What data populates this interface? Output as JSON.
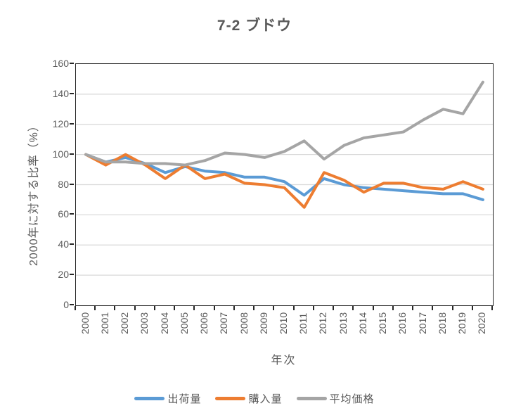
{
  "title": "7-2 ブドウ",
  "y_axis": {
    "title": "2000年に対する比率（%）",
    "ticks": [
      "160",
      "140",
      "120",
      "100",
      "80",
      "60",
      "40",
      "20",
      "0"
    ]
  },
  "x_axis": {
    "title": "年次",
    "labels": [
      "2000",
      "2001",
      "2002",
      "2003",
      "2004",
      "2005",
      "2006",
      "2007",
      "2008",
      "2009",
      "2010",
      "2011",
      "2012",
      "2013",
      "2014",
      "2015",
      "2016",
      "2017",
      "2018",
      "2019",
      "2020"
    ]
  },
  "legend": [
    {
      "label": "出荷量",
      "color": "#5B9BD5"
    },
    {
      "label": "購入量",
      "color": "#ED7D31"
    },
    {
      "label": "平均価格",
      "color": "#A5A5A5"
    }
  ],
  "colors": {
    "grid": "#D9D9D9",
    "axis": "#262626",
    "text": "#595959"
  },
  "chart_data": {
    "type": "line",
    "title": "7-2 ブドウ",
    "xlabel": "年次",
    "ylabel": "2000年に対する比率（%）",
    "ylim": [
      0,
      160
    ],
    "ytick_step": 20,
    "grid": "horizontal",
    "legend_position": "bottom",
    "categories": [
      "2000",
      "2001",
      "2002",
      "2003",
      "2004",
      "2005",
      "2006",
      "2007",
      "2008",
      "2009",
      "2010",
      "2011",
      "2012",
      "2013",
      "2014",
      "2015",
      "2016",
      "2017",
      "2018",
      "2019",
      "2020"
    ],
    "series": [
      {
        "name": "出荷量",
        "color": "#5B9BD5",
        "values": [
          100,
          95,
          98,
          94,
          88,
          92,
          89,
          88,
          85,
          85,
          82,
          73,
          84,
          80,
          78,
          77,
          76,
          75,
          74,
          74,
          70
        ]
      },
      {
        "name": "購入量",
        "color": "#ED7D31",
        "values": [
          100,
          93,
          100,
          93,
          84,
          93,
          84,
          87,
          81,
          80,
          78,
          65,
          88,
          83,
          75,
          81,
          81,
          78,
          77,
          82,
          77
        ]
      },
      {
        "name": "平均価格",
        "color": "#A5A5A5",
        "values": [
          100,
          95,
          95,
          94,
          94,
          93,
          96,
          101,
          100,
          98,
          102,
          109,
          97,
          106,
          111,
          113,
          115,
          123,
          130,
          127,
          148
        ]
      }
    ]
  }
}
